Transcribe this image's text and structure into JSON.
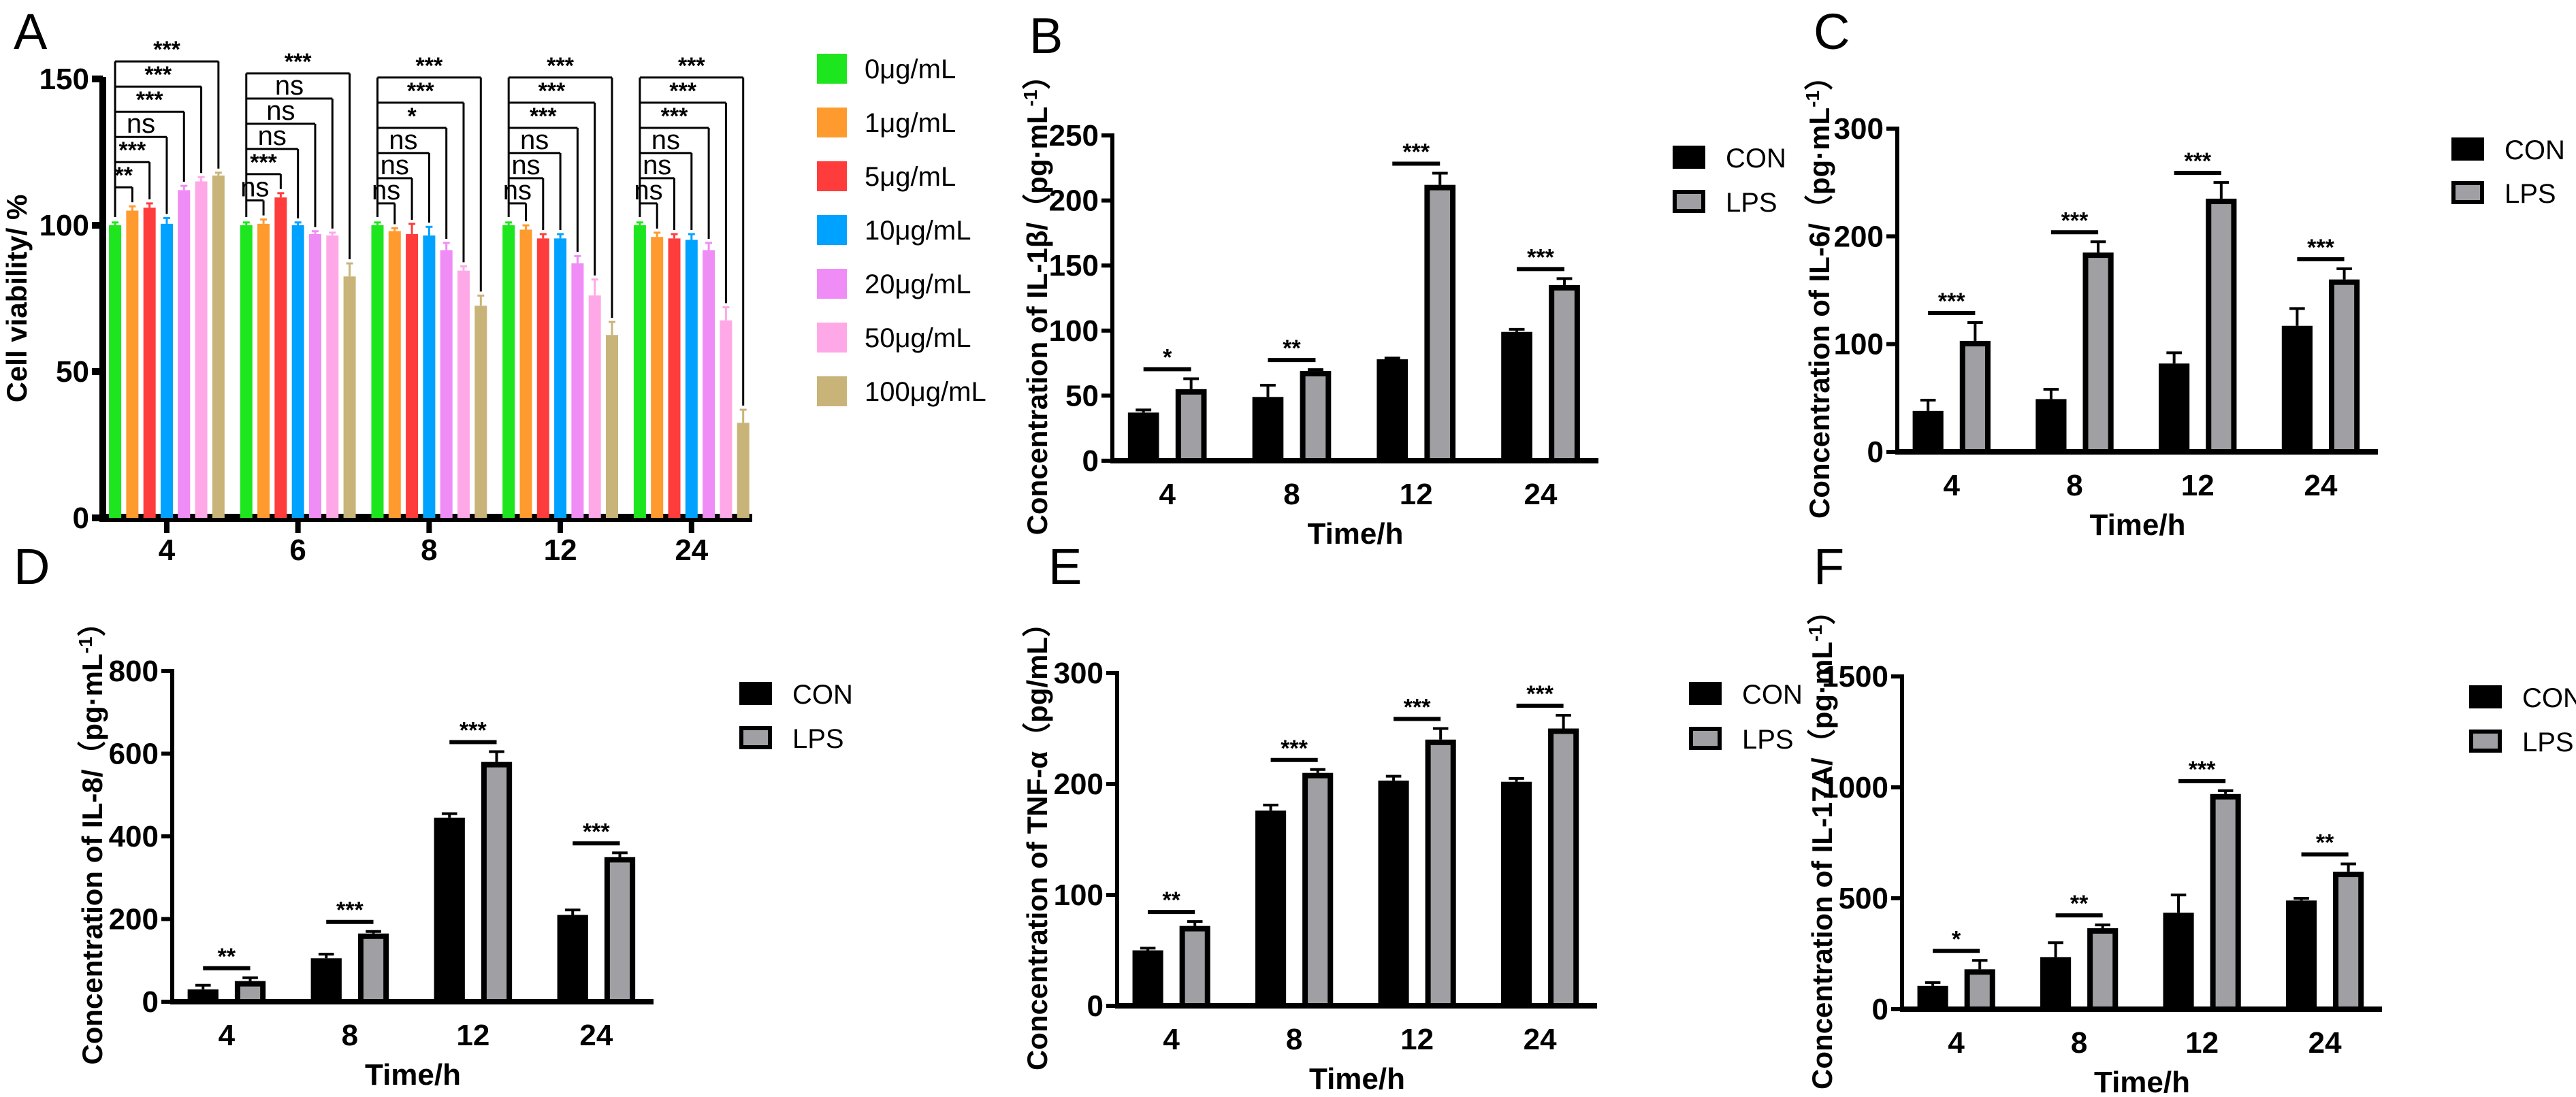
{
  "panel_labels": [
    "A",
    "B",
    "C",
    "D",
    "E",
    "F"
  ],
  "chart_data": [
    {
      "panel": "A",
      "type": "bar",
      "title": "",
      "xlabel": "",
      "ylabel": "Cell viability/ %",
      "ylabel_sup": "",
      "ylabel_end": "",
      "ylim": [
        0,
        150
      ],
      "yticks": [
        "0",
        "50",
        "100",
        "150"
      ],
      "yticks_values": [
        0,
        50,
        100,
        150
      ],
      "categories": [
        "4",
        "6",
        "8",
        "12",
        "24"
      ],
      "legend": "right",
      "series": [
        {
          "name": "0μg/mL",
          "color": "#1ee61e",
          "values": [
            100,
            100,
            100,
            100,
            100
          ],
          "errors": [
            0.5,
            0.5,
            0.5,
            0.5,
            0.5
          ]
        },
        {
          "name": "1μg/mL",
          "color": "#ff9a2e",
          "values": [
            105,
            100.5,
            98,
            98.5,
            96
          ],
          "errors": [
            1,
            1,
            0.5,
            1,
            1
          ]
        },
        {
          "name": "5μg/mL",
          "color": "#ff3c3c",
          "values": [
            106,
            109.5,
            97,
            95.5,
            95.5
          ],
          "errors": [
            1,
            1,
            3,
            1,
            1
          ]
        },
        {
          "name": "10μg/mL",
          "color": "#00a2ff",
          "values": [
            100.5,
            100,
            96.5,
            95.5,
            95
          ],
          "errors": [
            1.5,
            0.5,
            2.5,
            1,
            1.5
          ]
        },
        {
          "name": "20μg/mL",
          "color": "#f08cf5",
          "values": [
            112,
            97,
            91.5,
            87,
            91.5
          ],
          "errors": [
            1,
            0.5,
            2,
            2,
            2
          ]
        },
        {
          "name": "50μg/mL",
          "color": "#ffa8e8",
          "values": [
            115,
            96.5,
            84.5,
            76,
            67.5
          ],
          "errors": [
            1,
            0.5,
            1,
            5,
            4
          ]
        },
        {
          "name": "100μg/mL",
          "color": "#c8b478",
          "values": [
            117,
            82.5,
            72.5,
            62.5,
            32.5
          ],
          "errors": [
            0.5,
            4,
            3,
            4,
            4
          ]
        }
      ],
      "significance": [
        [
          "**",
          "***",
          "ns",
          "***",
          "***",
          "***"
        ],
        [
          "ns",
          "***",
          "ns",
          "ns",
          "ns",
          "***"
        ],
        [
          "ns",
          "ns",
          "ns",
          "*",
          "***",
          "***"
        ],
        [
          "ns",
          "ns",
          "ns",
          "***",
          "***",
          "***"
        ],
        [
          "ns",
          "ns",
          "ns",
          "***",
          "***",
          "***"
        ]
      ]
    },
    {
      "panel": "B",
      "type": "bar",
      "title": "",
      "xlabel": "Time/h",
      "ylabel": "Concentration of IL-1β/（pg·mL",
      "ylabel_sup": "-1",
      "ylabel_end": "）",
      "ylim": [
        0,
        250
      ],
      "yticks": [
        "0",
        "50",
        "100",
        "150",
        "200",
        "250"
      ],
      "yticks_values": [
        0,
        50,
        100,
        150,
        200,
        250
      ],
      "categories": [
        "4",
        "8",
        "12",
        "24"
      ],
      "legend": "right",
      "series": [
        {
          "name": "CON",
          "color": "#000000",
          "values": [
            37,
            49,
            78,
            99
          ],
          "errors": [
            2,
            9,
            1,
            2
          ]
        },
        {
          "name": "LPS",
          "color": "#a0a0a4",
          "values": [
            55,
            69,
            212,
            135
          ],
          "errors": [
            8,
            1,
            9,
            5
          ]
        }
      ],
      "significance": [
        "*",
        "**",
        "***",
        "***"
      ]
    },
    {
      "panel": "C",
      "type": "bar",
      "title": "",
      "xlabel": "Time/h",
      "ylabel": "Concentration of IL-6/（pg·mL",
      "ylabel_sup": "-1",
      "ylabel_end": "）",
      "ylim": [
        0,
        300
      ],
      "yticks": [
        "0",
        "100",
        "200",
        "300"
      ],
      "yticks_values": [
        0,
        100,
        200,
        300
      ],
      "categories": [
        "4",
        "8",
        "12",
        "24"
      ],
      "legend": "right",
      "series": [
        {
          "name": "CON",
          "color": "#000000",
          "values": [
            38,
            49,
            82,
            117
          ],
          "errors": [
            10,
            9,
            10,
            16
          ]
        },
        {
          "name": "LPS",
          "color": "#a0a0a4",
          "values": [
            103,
            185,
            235,
            160
          ],
          "errors": [
            17,
            10,
            15,
            10
          ]
        }
      ],
      "significance": [
        "***",
        "***",
        "***",
        "***"
      ]
    },
    {
      "panel": "D",
      "type": "bar",
      "title": "",
      "xlabel": "Time/h",
      "ylabel": "Concentration of IL-8/（pg·mL",
      "ylabel_sup": "-1",
      "ylabel_end": "）",
      "ylim": [
        0,
        800
      ],
      "yticks": [
        "0",
        "200",
        "400",
        "600",
        "800"
      ],
      "yticks_values": [
        0,
        200,
        400,
        600,
        800
      ],
      "categories": [
        "4",
        "8",
        "12",
        "24"
      ],
      "legend": "right",
      "series": [
        {
          "name": "CON",
          "color": "#000000",
          "values": [
            30,
            105,
            445,
            210
          ],
          "errors": [
            10,
            10,
            10,
            12
          ]
        },
        {
          "name": "LPS",
          "color": "#a0a0a4",
          "values": [
            50,
            165,
            580,
            350
          ],
          "errors": [
            8,
            5,
            25,
            10
          ]
        }
      ],
      "significance": [
        "**",
        "***",
        "***",
        "***"
      ]
    },
    {
      "panel": "E",
      "type": "bar",
      "title": "",
      "xlabel": "Time/h",
      "ylabel": "Concentration of TNF-α（pg/mL）",
      "ylabel_sup": "",
      "ylabel_end": "",
      "ylim": [
        0,
        300
      ],
      "yticks": [
        "0",
        "100",
        "200",
        "300"
      ],
      "yticks_values": [
        0,
        100,
        200,
        300
      ],
      "categories": [
        "4",
        "8",
        "12",
        "24"
      ],
      "legend": "right",
      "series": [
        {
          "name": "CON",
          "color": "#000000",
          "values": [
            50,
            176,
            203,
            202
          ],
          "errors": [
            2,
            5,
            4,
            3
          ]
        },
        {
          "name": "LPS",
          "color": "#a0a0a4",
          "values": [
            72,
            210,
            240,
            250
          ],
          "errors": [
            4,
            3,
            10,
            12
          ]
        }
      ],
      "significance": [
        "**",
        "***",
        "***",
        "***"
      ]
    },
    {
      "panel": "F",
      "type": "bar",
      "title": "",
      "xlabel": "Time/h",
      "ylabel": "Concentration of IL-17A/（pg·mL",
      "ylabel_sup": "-1",
      "ylabel_end": "）",
      "ylim": [
        0,
        1500
      ],
      "yticks": [
        "0",
        "500",
        "1000",
        "1500"
      ],
      "yticks_values": [
        0,
        500,
        1000,
        1500
      ],
      "categories": [
        "4",
        "8",
        "12",
        "24"
      ],
      "legend": "right",
      "series": [
        {
          "name": "CON",
          "color": "#000000",
          "values": [
            105,
            235,
            435,
            490
          ],
          "errors": [
            15,
            65,
            80,
            10
          ]
        },
        {
          "name": "LPS",
          "color": "#a0a0a4",
          "values": [
            180,
            365,
            970,
            620
          ],
          "errors": [
            40,
            15,
            15,
            35
          ]
        }
      ],
      "significance": [
        "*",
        "**",
        "***",
        "**"
      ]
    }
  ]
}
